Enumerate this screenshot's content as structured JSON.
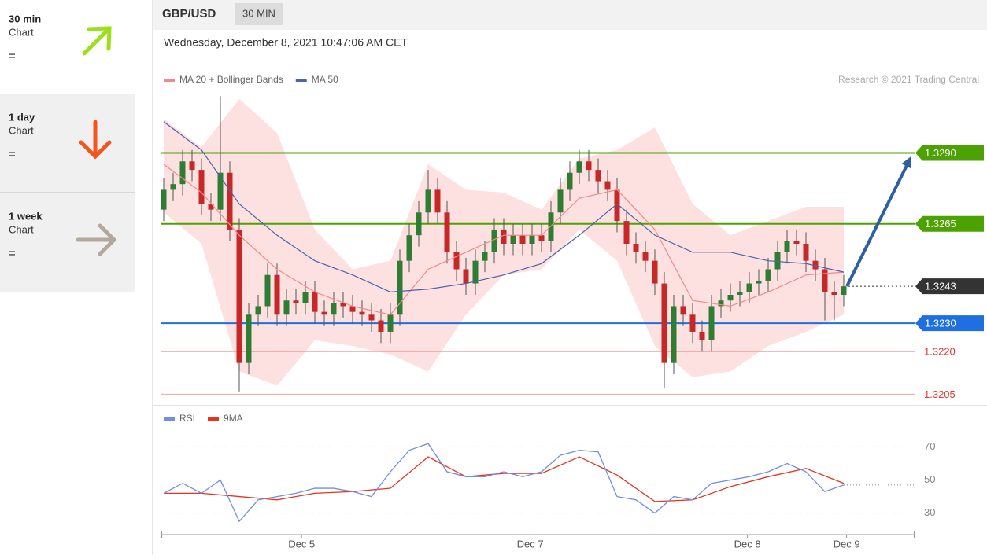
{
  "sidebar": [
    {
      "period": "30 min",
      "label": "Chart",
      "signal": "="
    },
    {
      "period": "1 day",
      "label": "Chart",
      "signal": "="
    },
    {
      "period": "1 week",
      "label": "Chart",
      "signal": "="
    }
  ],
  "chart_data": [
    {
      "type": "candlestick",
      "title": "GBP/USD",
      "timeframe": "30 MIN",
      "subtitle": "Wednesday, December 8, 2021 10:47:06 AM CET",
      "credit": "Research © 2021 Trading Central",
      "up_color": "#2f7d32",
      "down_color": "#c62828",
      "xlim": [
        0,
        79.5
      ],
      "ylim": [
        1.3204,
        1.3312
      ],
      "x": [
        0,
        1,
        2,
        3,
        4,
        5,
        6,
        7,
        8,
        9,
        10,
        11,
        12,
        13,
        14,
        15,
        16,
        17,
        18,
        19,
        20,
        21,
        22,
        23,
        24,
        25,
        26,
        27,
        28,
        29,
        30,
        31,
        32,
        33,
        34,
        35,
        36,
        37,
        38,
        39,
        40,
        41,
        42,
        43,
        44,
        45,
        46,
        47,
        48,
        49,
        50,
        51,
        52,
        53,
        54,
        55,
        56,
        57,
        58,
        59,
        60,
        61,
        62,
        63,
        64,
        65,
        66,
        67,
        68,
        69,
        70,
        71,
        72
      ],
      "open": [
        1.327,
        1.3277,
        1.3279,
        1.3287,
        1.3284,
        1.3272,
        1.327,
        1.3283,
        1.3263,
        1.3216,
        1.3233,
        1.3236,
        1.3247,
        1.3233,
        1.3238,
        1.3237,
        1.3241,
        1.3234,
        1.3233,
        1.3237,
        1.3236,
        1.3234,
        1.3233,
        1.3231,
        1.3227,
        1.3233,
        1.3252,
        1.3261,
        1.3269,
        1.3277,
        1.3269,
        1.3255,
        1.3249,
        1.3244,
        1.3252,
        1.3255,
        1.3263,
        1.3258,
        1.3261,
        1.3258,
        1.3261,
        1.3259,
        1.3269,
        1.3277,
        1.3283,
        1.3287,
        1.3284,
        1.328,
        1.3277,
        1.3266,
        1.3258,
        1.3255,
        1.3252,
        1.3244,
        1.3216,
        1.3236,
        1.3233,
        1.3227,
        1.3224,
        1.3236,
        1.3238,
        1.324,
        1.3241,
        1.3244,
        1.3245,
        1.3249,
        1.3255,
        1.3259,
        1.3258,
        1.3252,
        1.3249,
        1.3241,
        1.324
      ],
      "high": [
        1.3281,
        1.3283,
        1.3291,
        1.3291,
        1.3288,
        1.3276,
        1.331,
        1.3287,
        1.3267,
        1.3237,
        1.324,
        1.3251,
        1.3251,
        1.3242,
        1.3242,
        1.3245,
        1.3245,
        1.3238,
        1.3241,
        1.3241,
        1.324,
        1.3238,
        1.3237,
        1.3235,
        1.3237,
        1.3256,
        1.3265,
        1.3273,
        1.3284,
        1.3281,
        1.3273,
        1.3259,
        1.3253,
        1.3256,
        1.3259,
        1.3267,
        1.3267,
        1.3265,
        1.3265,
        1.3265,
        1.3265,
        1.3273,
        1.3281,
        1.3287,
        1.3291,
        1.3291,
        1.3288,
        1.3284,
        1.3281,
        1.327,
        1.3262,
        1.3259,
        1.3256,
        1.3248,
        1.324,
        1.324,
        1.3237,
        1.3231,
        1.324,
        1.3242,
        1.3244,
        1.3245,
        1.3248,
        1.3249,
        1.3253,
        1.3259,
        1.3263,
        1.3263,
        1.3262,
        1.3256,
        1.3253,
        1.3245,
        1.3247
      ],
      "low": [
        1.3266,
        1.3273,
        1.3275,
        1.328,
        1.3268,
        1.3266,
        1.3266,
        1.3259,
        1.3206,
        1.3212,
        1.3229,
        1.3232,
        1.3229,
        1.3229,
        1.3233,
        1.3233,
        1.323,
        1.3229,
        1.3229,
        1.3232,
        1.323,
        1.3229,
        1.3227,
        1.3223,
        1.3223,
        1.3229,
        1.3248,
        1.3257,
        1.3265,
        1.3265,
        1.3251,
        1.3245,
        1.324,
        1.324,
        1.3248,
        1.3251,
        1.3254,
        1.3254,
        1.3254,
        1.3254,
        1.3255,
        1.3255,
        1.3265,
        1.3273,
        1.3279,
        1.328,
        1.3276,
        1.3273,
        1.3262,
        1.3254,
        1.3251,
        1.3248,
        1.324,
        1.3207,
        1.3212,
        1.3229,
        1.3223,
        1.322,
        1.322,
        1.3232,
        1.3234,
        1.3236,
        1.3237,
        1.324,
        1.3241,
        1.3245,
        1.3251,
        1.3254,
        1.3248,
        1.3245,
        1.3231,
        1.3231,
        1.3236
      ],
      "close": [
        1.3277,
        1.3279,
        1.3287,
        1.3284,
        1.3272,
        1.327,
        1.3283,
        1.3263,
        1.3216,
        1.3233,
        1.3236,
        1.3247,
        1.3233,
        1.3238,
        1.3237,
        1.3241,
        1.3234,
        1.3233,
        1.3237,
        1.3236,
        1.3234,
        1.3233,
        1.3231,
        1.3227,
        1.3233,
        1.3252,
        1.3261,
        1.3269,
        1.3277,
        1.3269,
        1.3255,
        1.3249,
        1.3244,
        1.3252,
        1.3255,
        1.3263,
        1.3258,
        1.3261,
        1.3258,
        1.3261,
        1.3259,
        1.3269,
        1.3277,
        1.3283,
        1.3287,
        1.3284,
        1.328,
        1.3277,
        1.3266,
        1.3258,
        1.3255,
        1.3252,
        1.3244,
        1.3216,
        1.3236,
        1.3233,
        1.3227,
        1.3224,
        1.3236,
        1.3238,
        1.324,
        1.3241,
        1.3244,
        1.3245,
        1.3249,
        1.3255,
        1.3259,
        1.3258,
        1.3252,
        1.3249,
        1.3241,
        1.324,
        1.3243
      ],
      "series": [
        {
          "name": "MA 20 + Bollinger Bands",
          "color": "#f08a8a",
          "band_color": "#fde0e0",
          "x": [
            0,
            4,
            8,
            12,
            16,
            20,
            24,
            28,
            32,
            36,
            40,
            44,
            48,
            52,
            56,
            60,
            64,
            68,
            72
          ],
          "values": [
            1.3286,
            1.3276,
            1.3261,
            1.3249,
            1.3241,
            1.3236,
            1.3233,
            1.3249,
            1.3255,
            1.3261,
            1.3261,
            1.3274,
            1.3277,
            1.3263,
            1.3238,
            1.3236,
            1.3241,
            1.3247,
            1.3248
          ],
          "upper": [
            1.3302,
            1.3292,
            1.3309,
            1.3297,
            1.3263,
            1.3249,
            1.3252,
            1.3286,
            1.3277,
            1.3276,
            1.327,
            1.3288,
            1.3291,
            1.3299,
            1.3272,
            1.3261,
            1.3266,
            1.3271,
            1.3271
          ],
          "lower": [
            1.3269,
            1.3258,
            1.3213,
            1.3208,
            1.3224,
            1.3222,
            1.3219,
            1.3213,
            1.3233,
            1.3247,
            1.3249,
            1.3263,
            1.3252,
            1.3222,
            1.3211,
            1.3213,
            1.3222,
            1.3227,
            1.3233
          ]
        },
        {
          "name": "MA 50",
          "color": "#4a64a8",
          "x": [
            0,
            4,
            8,
            12,
            16,
            20,
            24,
            28,
            32,
            36,
            40,
            44,
            48,
            52,
            56,
            60,
            64,
            68,
            72
          ],
          "values": [
            1.3301,
            1.3291,
            1.3272,
            1.3261,
            1.3252,
            1.3247,
            1.3241,
            1.3242,
            1.3244,
            1.3247,
            1.3251,
            1.3261,
            1.3272,
            1.3261,
            1.3255,
            1.3255,
            1.3252,
            1.3251,
            1.3248
          ]
        }
      ],
      "levels": [
        {
          "value": 1.329,
          "label": "1.3290",
          "color": "#4ca200",
          "style": "box",
          "line": "solid"
        },
        {
          "value": 1.3265,
          "label": "1.3265",
          "color": "#4ca200",
          "style": "box",
          "line": "solid"
        },
        {
          "value": 1.3243,
          "label": "1.3243",
          "color": "#333333",
          "style": "box",
          "line": "dotted"
        },
        {
          "value": 1.323,
          "label": "1.3230",
          "color": "#1e6fe0",
          "style": "box",
          "line": "solid"
        },
        {
          "value": 1.322,
          "label": "1.3220",
          "color": "#f08a8a",
          "style": "text",
          "line": "solid"
        },
        {
          "value": 1.3205,
          "label": "1.3205",
          "color": "#f08a8a",
          "style": "text",
          "line": "solid"
        }
      ],
      "forecast_color": "#2f5fa0"
    },
    {
      "type": "line",
      "xlim": [
        0,
        79.5
      ],
      "ylim": [
        17,
        93
      ],
      "yticks": [
        30,
        50,
        70
      ],
      "xticks": [
        {
          "value": 14.6,
          "label": "Dec 5"
        },
        {
          "value": 38.8,
          "label": "Dec 7"
        },
        {
          "value": 61.8,
          "label": "Dec 8"
        },
        {
          "value": 72.3,
          "label": "Dec 9"
        }
      ],
      "series": [
        {
          "name": "RSI",
          "color": "#6f8fe0",
          "x": [
            0,
            2,
            4,
            6,
            8,
            10,
            12,
            14,
            16,
            18,
            20,
            22,
            24,
            26,
            28,
            30,
            32,
            34,
            36,
            38,
            40,
            42,
            44,
            46,
            48,
            50,
            52,
            54,
            56,
            58,
            60,
            62,
            64,
            66,
            68,
            70,
            72
          ],
          "values": [
            42,
            48,
            42,
            50,
            25,
            38,
            40,
            42,
            45,
            45,
            43,
            40,
            55,
            68,
            72,
            55,
            52,
            52,
            55,
            52,
            55,
            65,
            68,
            67,
            40,
            38,
            30,
            40,
            38,
            48,
            50,
            52,
            55,
            60,
            55,
            43,
            47
          ]
        },
        {
          "name": "9MA",
          "color": "#e8321e",
          "x": [
            0,
            4,
            8,
            12,
            16,
            20,
            24,
            28,
            32,
            36,
            40,
            44,
            48,
            52,
            56,
            60,
            64,
            68,
            72
          ],
          "values": [
            42,
            42,
            40,
            38,
            42,
            43,
            45,
            64,
            52,
            54,
            54,
            64,
            53,
            37,
            38,
            46,
            52,
            57,
            48
          ]
        }
      ]
    }
  ]
}
